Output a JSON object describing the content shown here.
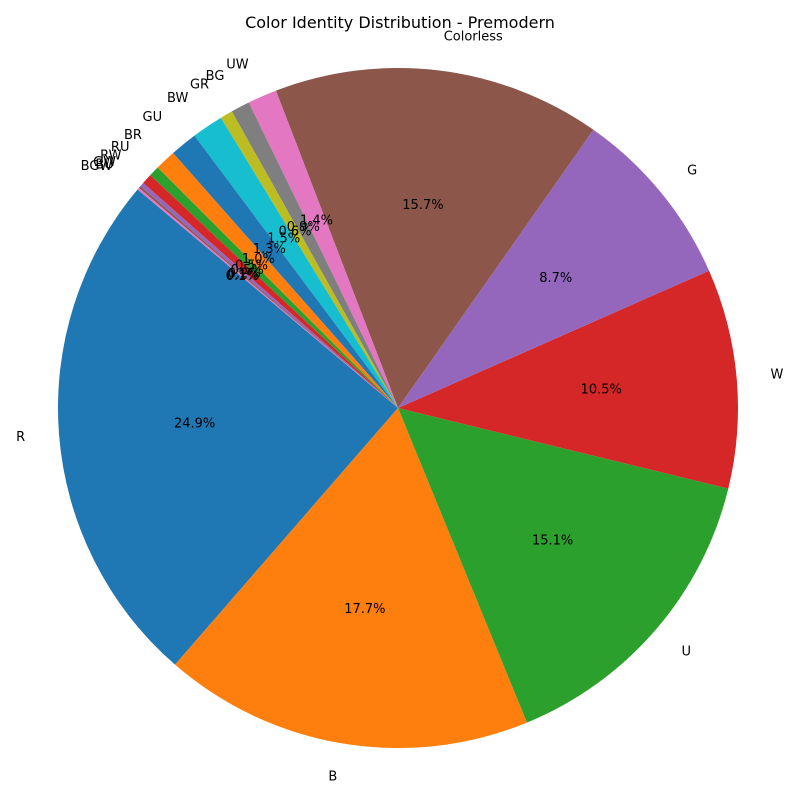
{
  "chart_data": {
    "type": "pie",
    "title": "Color Identity Distribution - Premodern",
    "labels": [
      "R",
      "B",
      "U",
      "W",
      "G",
      "Colorless",
      "UW",
      "BG",
      "GR",
      "BW",
      "GU",
      "BR",
      "RU",
      "RW",
      "GW",
      "BU",
      "BGW"
    ],
    "values": [
      24.9,
      17.7,
      15.1,
      10.5,
      8.7,
      15.7,
      1.4,
      0.9,
      0.6,
      1.5,
      1.3,
      1.0,
      0.5,
      0.5,
      0.2,
      0.1,
      0.1
    ],
    "pct_labels": [
      "24.9%",
      "17.7%",
      "15.1%",
      "10.5%",
      "8.7%",
      "15.7%",
      "1.4%",
      "0.9%",
      "0.6%",
      "1.5%",
      "1.3%",
      "1.0%",
      "0.5%",
      "0.5%",
      "0.2%",
      "0.1%",
      "0.1%"
    ],
    "colors": [
      "#1f77b4",
      "#ff7f0e",
      "#2ca02c",
      "#d62728",
      "#9467bd",
      "#8c564b",
      "#e377c2",
      "#7f7f7f",
      "#bcbd22",
      "#17becf",
      "#1f77b4",
      "#ff7f0e",
      "#2ca02c",
      "#d62728",
      "#9467bd",
      "#8c564b",
      "#e377c2"
    ],
    "start_angle_deg": 140,
    "direction": "counterclockwise",
    "legend": "none"
  }
}
